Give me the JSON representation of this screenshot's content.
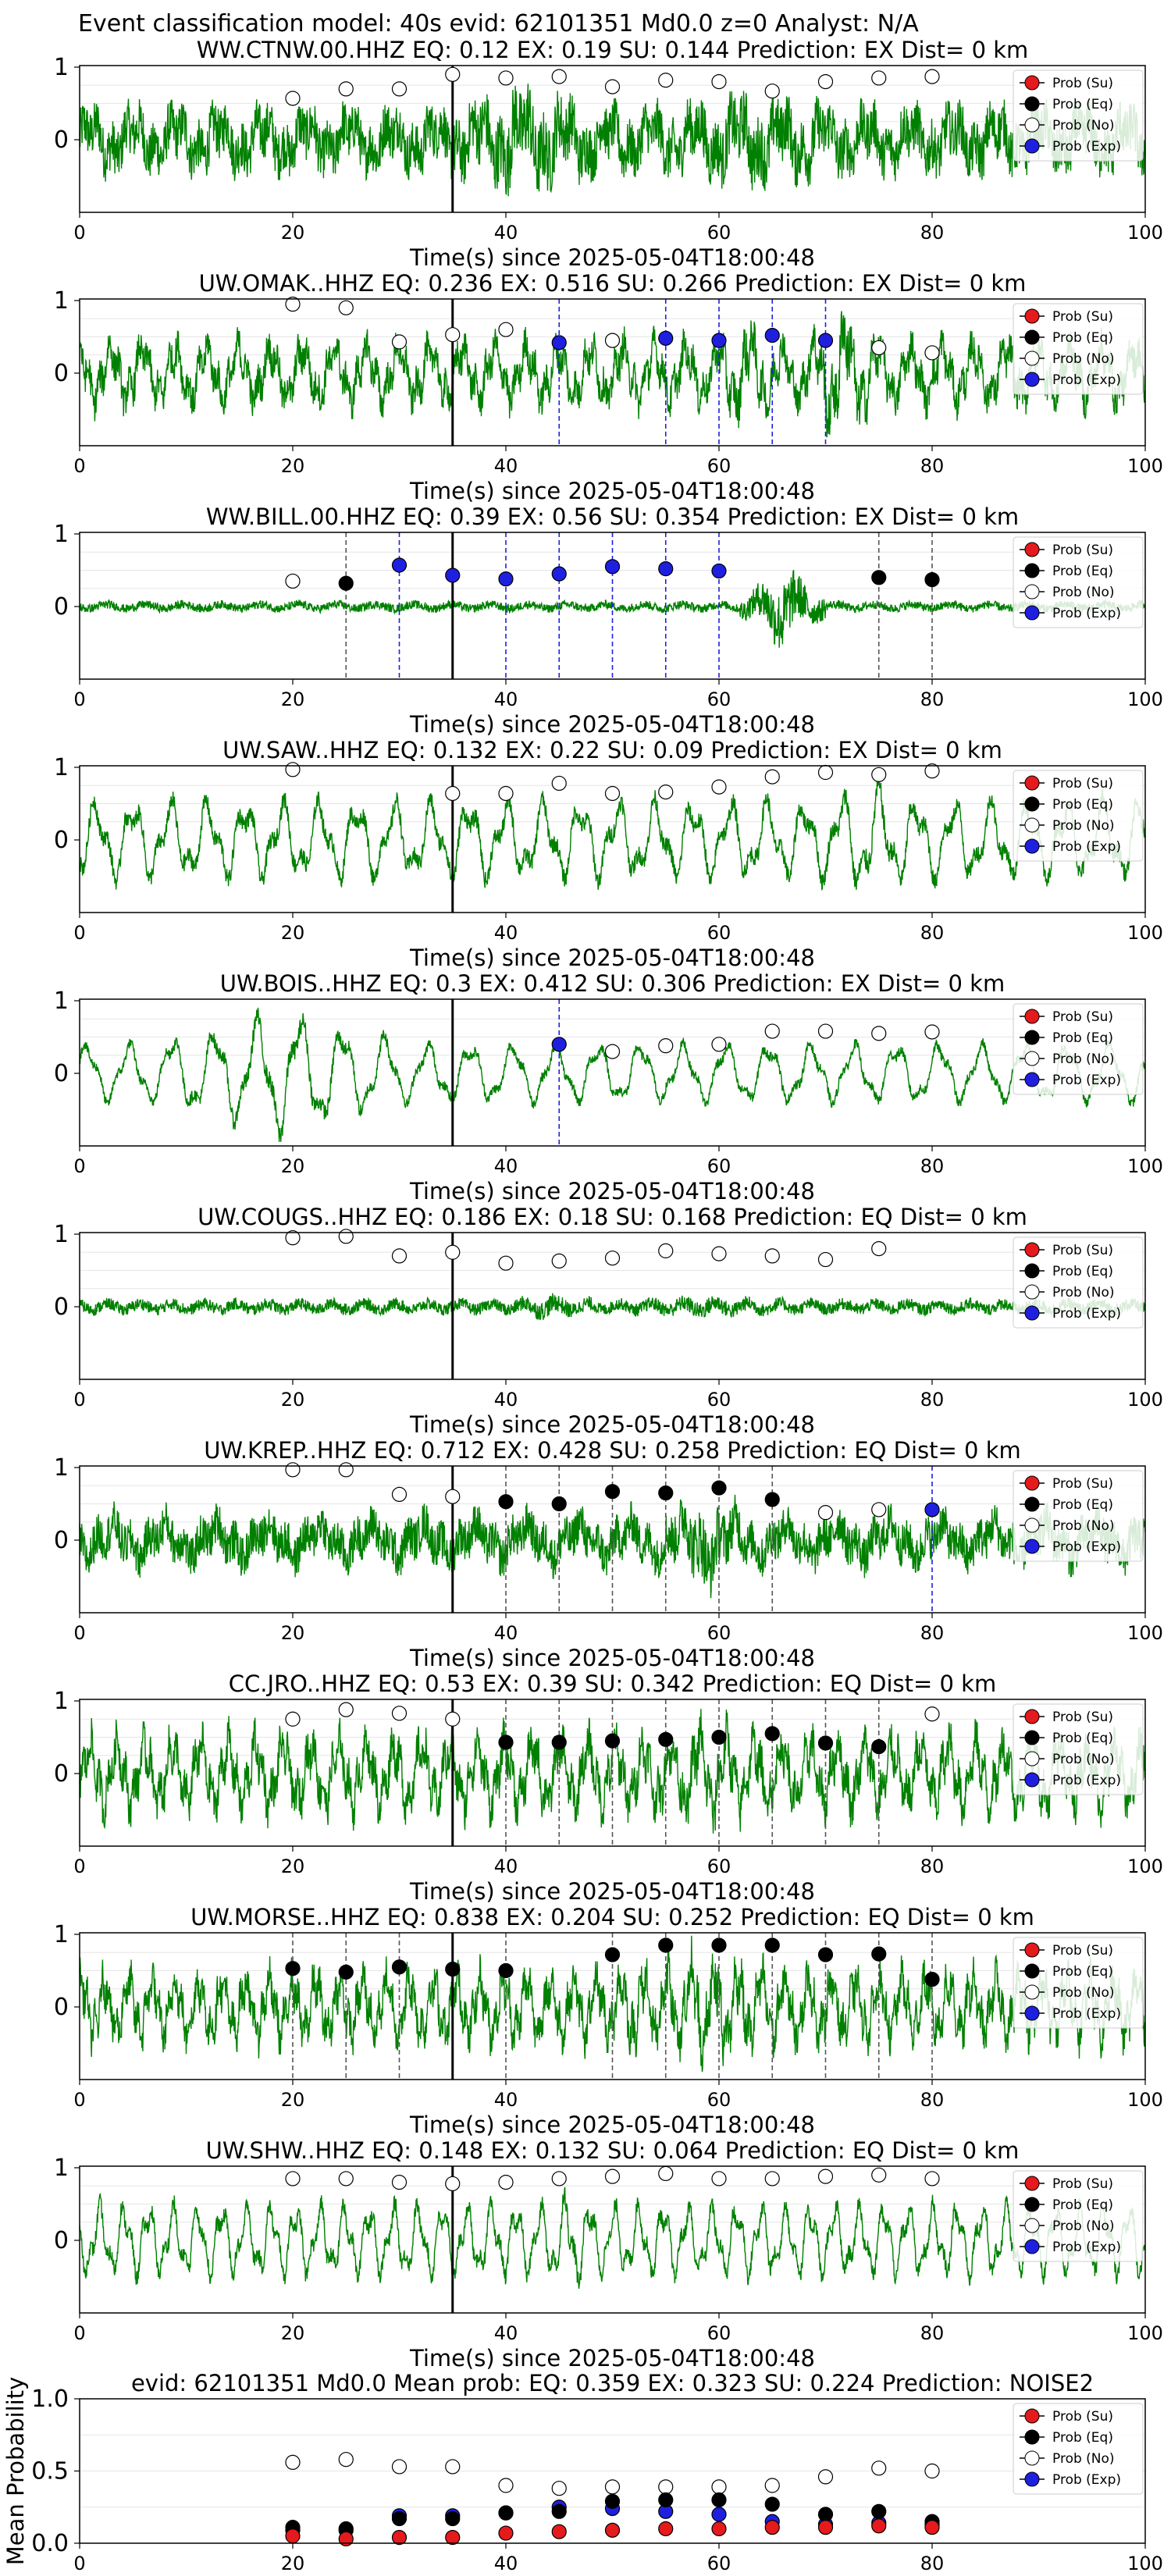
{
  "figure": {
    "suptitle": "Event classification model: 40s evid: 62101351 Md0.0 z=0 Analyst: N/A"
  },
  "legend": {
    "items": [
      {
        "label": "Prob (Su)",
        "fill": "#e41a1c"
      },
      {
        "label": "Prob (Eq)",
        "fill": "#000000"
      },
      {
        "label": "Prob (No)",
        "fill": "#ffffff"
      },
      {
        "label": "Prob (Exp)",
        "fill": "#1f1fe0"
      }
    ]
  },
  "colors": {
    "waveform": "#008000",
    "su": "#e41a1c",
    "eq": "#000000",
    "no": "#ffffff",
    "exp": "#1f1fe0",
    "eq_line": "#555555",
    "exp_line": "#1f1fe0",
    "pick_line": "#000000"
  },
  "chart_data": [
    {
      "type": "line",
      "station": "WW.CTNW.00.HHZ",
      "title": "WW.CTNW.00.HHZ   EQ: 0.12  EX: 0.19  SU: 0.144   Prediction: EX    Dist= 0 km",
      "xlabel": "Time(s) since 2025-05-04T18:00:48",
      "xlim": [
        0,
        100
      ],
      "ylim": [
        -1,
        1
      ],
      "xticks": [
        "0",
        "20",
        "40",
        "60",
        "80",
        "100"
      ],
      "yticks": [
        "1",
        "0"
      ],
      "pick_time": 35,
      "waveform": {
        "style": "noisy",
        "amp": 0.55,
        "period": 1.5,
        "bursts": [
          [
            35,
            48,
            1.6
          ],
          [
            55,
            72,
            1.3
          ]
        ]
      },
      "noise_points": [
        [
          20,
          0.57
        ],
        [
          25,
          0.7
        ],
        [
          30,
          0.7
        ],
        [
          35,
          0.9
        ],
        [
          40,
          0.85
        ],
        [
          45,
          0.87
        ],
        [
          50,
          0.73
        ],
        [
          55,
          0.82
        ],
        [
          60,
          0.8
        ],
        [
          65,
          0.67
        ],
        [
          70,
          0.8
        ],
        [
          75,
          0.85
        ],
        [
          80,
          0.87
        ]
      ],
      "eq_points": [],
      "exp_points": [],
      "eq_lines": [],
      "exp_lines": []
    },
    {
      "type": "line",
      "station": "UW.OMAK..HHZ",
      "title": "UW.OMAK..HHZ   EQ: 0.236  EX: 0.516  SU: 0.266   Prediction: EX    Dist= 0 km",
      "xlabel": "Time(s) since 2025-05-04T18:00:48",
      "xlim": [
        0,
        100
      ],
      "ylim": [
        -1,
        1
      ],
      "xticks": [
        "0",
        "20",
        "40",
        "60",
        "80",
        "100"
      ],
      "yticks": [
        "1",
        "0"
      ],
      "pick_time": 35,
      "waveform": {
        "style": "mixed",
        "amp": 0.55,
        "period": 3.0,
        "bursts": [
          [
            60,
            65,
            1.5
          ],
          [
            68,
            75,
            1.9
          ]
        ]
      },
      "noise_points": [
        [
          20,
          0.95
        ],
        [
          25,
          0.9
        ],
        [
          30,
          0.43
        ],
        [
          35,
          0.53
        ],
        [
          40,
          0.6
        ],
        [
          50,
          0.45
        ],
        [
          75,
          0.35
        ],
        [
          80,
          0.28
        ]
      ],
      "eq_points": [],
      "exp_points": [
        [
          45,
          0.42
        ],
        [
          55,
          0.48
        ],
        [
          60,
          0.45
        ],
        [
          65,
          0.52
        ],
        [
          70,
          0.45
        ]
      ],
      "eq_lines": [],
      "exp_lines": [
        45,
        55,
        60,
        65,
        70
      ]
    },
    {
      "type": "line",
      "station": "WW.BILL.00.HHZ",
      "title": "WW.BILL.00.HHZ   EQ: 0.39  EX: 0.56  SU: 0.354   Prediction: EX    Dist= 0 km",
      "xlabel": "Time(s) since 2025-05-04T18:00:48",
      "xlim": [
        0,
        100
      ],
      "ylim": [
        -1,
        1
      ],
      "xticks": [
        "0",
        "20",
        "40",
        "60",
        "80",
        "100"
      ],
      "yticks": [
        "1",
        "0"
      ],
      "pick_time": 35,
      "waveform": {
        "style": "quiet",
        "amp": 0.1,
        "period": 1.2,
        "bursts": [
          [
            62,
            70,
            8.0
          ]
        ]
      },
      "noise_points": [
        [
          20,
          0.35
        ]
      ],
      "eq_points": [
        [
          25,
          0.32
        ],
        [
          75,
          0.4
        ],
        [
          80,
          0.37
        ]
      ],
      "exp_points": [
        [
          30,
          0.57
        ],
        [
          35,
          0.43
        ],
        [
          40,
          0.38
        ],
        [
          45,
          0.45
        ],
        [
          50,
          0.55
        ],
        [
          55,
          0.52
        ],
        [
          60,
          0.49
        ]
      ],
      "eq_lines": [
        25,
        75,
        80
      ],
      "exp_lines": [
        30,
        40,
        45,
        50,
        55,
        60
      ]
    },
    {
      "type": "line",
      "station": "UW.SAW..HHZ",
      "title": "UW.SAW..HHZ   EQ: 0.132  EX: 0.22  SU: 0.09   Prediction: EX    Dist= 0 km",
      "xlabel": "Time(s) since 2025-05-04T18:00:48",
      "xlim": [
        0,
        100
      ],
      "ylim": [
        -1,
        1
      ],
      "xticks": [
        "0",
        "20",
        "40",
        "60",
        "80",
        "100"
      ],
      "yticks": [
        "1",
        "0"
      ],
      "pick_time": 35,
      "waveform": {
        "style": "wavy",
        "amp": 0.55,
        "period": 3.5,
        "bursts": [
          [
            70,
            78,
            1.4
          ]
        ]
      },
      "noise_points": [
        [
          20,
          0.97
        ],
        [
          35,
          0.64
        ],
        [
          40,
          0.64
        ],
        [
          45,
          0.78
        ],
        [
          50,
          0.64
        ],
        [
          55,
          0.66
        ],
        [
          60,
          0.73
        ],
        [
          65,
          0.87
        ],
        [
          70,
          0.93
        ],
        [
          75,
          0.9
        ],
        [
          80,
          0.95
        ]
      ],
      "eq_points": [],
      "exp_points": [],
      "eq_lines": [],
      "exp_lines": []
    },
    {
      "type": "line",
      "station": "UW.BOIS..HHZ",
      "title": "UW.BOIS..HHZ   EQ: 0.3  EX: 0.412  SU: 0.306   Prediction: EX    Dist= 0 km",
      "xlabel": "Time(s) since 2025-05-04T18:00:48",
      "xlim": [
        0,
        100
      ],
      "ylim": [
        -1,
        1
      ],
      "xticks": [
        "0",
        "20",
        "40",
        "60",
        "80",
        "100"
      ],
      "yticks": [
        "1",
        "0"
      ],
      "pick_time": 35,
      "waveform": {
        "style": "sine",
        "amp": 0.4,
        "period": 4.0,
        "bursts": [
          [
            8,
            30,
            2.1
          ]
        ]
      },
      "noise_points": [
        [
          50,
          0.3
        ],
        [
          55,
          0.38
        ],
        [
          60,
          0.4
        ],
        [
          65,
          0.58
        ],
        [
          70,
          0.58
        ],
        [
          75,
          0.55
        ],
        [
          80,
          0.57
        ]
      ],
      "eq_points": [],
      "exp_points": [
        [
          45,
          0.4
        ]
      ],
      "eq_lines": [],
      "exp_lines": [
        45
      ]
    },
    {
      "type": "line",
      "station": "UW.COUGS..HHZ",
      "title": "UW.COUGS..HHZ   EQ: 0.186  EX: 0.18  SU: 0.168   Prediction: EQ    Dist= 0 km",
      "xlabel": "Time(s) since 2025-05-04T18:00:48",
      "xlim": [
        0,
        100
      ],
      "ylim": [
        -1,
        1
      ],
      "xticks": [
        "0",
        "20",
        "40",
        "60",
        "80",
        "100"
      ],
      "yticks": [
        "1",
        "0"
      ],
      "pick_time": 35,
      "waveform": {
        "style": "quiet",
        "amp": 0.14,
        "period": 1.0,
        "bursts": [
          [
            40,
            48,
            1.7
          ],
          [
            52,
            66,
            1.5
          ]
        ]
      },
      "noise_points": [
        [
          20,
          0.95
        ],
        [
          25,
          0.97
        ],
        [
          30,
          0.7
        ],
        [
          35,
          0.75
        ],
        [
          40,
          0.6
        ],
        [
          45,
          0.63
        ],
        [
          50,
          0.67
        ],
        [
          55,
          0.77
        ],
        [
          60,
          0.73
        ],
        [
          65,
          0.7
        ],
        [
          70,
          0.65
        ],
        [
          75,
          0.8
        ]
      ],
      "eq_points": [],
      "exp_points": [],
      "eq_lines": [],
      "exp_lines": []
    },
    {
      "type": "line",
      "station": "UW.KREP..HHZ",
      "title": "UW.KREP..HHZ   EQ: 0.712  EX: 0.428  SU: 0.258   Prediction: EQ    Dist= 0 km",
      "xlabel": "Time(s) since 2025-05-04T18:00:48",
      "xlim": [
        0,
        100
      ],
      "ylim": [
        -1,
        1
      ],
      "xticks": [
        "0",
        "20",
        "40",
        "60",
        "80",
        "100"
      ],
      "yticks": [
        "1",
        "0"
      ],
      "pick_time": 35,
      "waveform": {
        "style": "noisy",
        "amp": 0.45,
        "period": 1.8,
        "bursts": [
          [
            55,
            62,
            1.7
          ]
        ]
      },
      "noise_points": [
        [
          20,
          0.97
        ],
        [
          25,
          0.97
        ],
        [
          30,
          0.63
        ],
        [
          35,
          0.6
        ],
        [
          70,
          0.38
        ],
        [
          75,
          0.42
        ]
      ],
      "eq_points": [
        [
          40,
          0.53
        ],
        [
          45,
          0.5
        ],
        [
          50,
          0.67
        ],
        [
          55,
          0.65
        ],
        [
          60,
          0.72
        ],
        [
          65,
          0.56
        ]
      ],
      "exp_points": [
        [
          80,
          0.42
        ]
      ],
      "eq_lines": [
        40,
        45,
        50,
        55,
        60,
        65
      ],
      "exp_lines": [
        80
      ]
    },
    {
      "type": "line",
      "station": "CC.JRO..HHZ",
      "title": "CC.JRO..HHZ   EQ: 0.53  EX: 0.39  SU: 0.342   Prediction: EQ    Dist= 0 km",
      "xlabel": "Time(s) since 2025-05-04T18:00:48",
      "xlim": [
        0,
        100
      ],
      "ylim": [
        -1,
        1
      ],
      "xticks": [
        "0",
        "20",
        "40",
        "60",
        "80",
        "100"
      ],
      "yticks": [
        "1",
        "0"
      ],
      "pick_time": 35,
      "waveform": {
        "style": "mixed",
        "amp": 0.65,
        "period": 2.6,
        "bursts": [
          [
            56,
            62,
            1.3
          ]
        ]
      },
      "noise_points": [
        [
          20,
          0.75
        ],
        [
          25,
          0.88
        ],
        [
          30,
          0.83
        ],
        [
          35,
          0.75
        ],
        [
          80,
          0.82
        ]
      ],
      "eq_points": [
        [
          40,
          0.43
        ],
        [
          45,
          0.43
        ],
        [
          50,
          0.45
        ],
        [
          55,
          0.47
        ],
        [
          60,
          0.5
        ],
        [
          65,
          0.55
        ],
        [
          70,
          0.42
        ],
        [
          75,
          0.37
        ]
      ],
      "exp_points": [],
      "eq_lines": [
        40,
        45,
        50,
        55,
        60,
        65,
        70,
        75
      ],
      "exp_lines": []
    },
    {
      "type": "line",
      "station": "UW.MORSE..HHZ",
      "title": "UW.MORSE..HHZ   EQ: 0.838  EX: 0.204  SU: 0.252   Prediction: EQ    Dist= 0 km",
      "xlabel": "Time(s) since 2025-05-04T18:00:48",
      "xlim": [
        0,
        100
      ],
      "ylim": [
        -1,
        1
      ],
      "xticks": [
        "0",
        "20",
        "40",
        "60",
        "80",
        "100"
      ],
      "yticks": [
        "1",
        "0"
      ],
      "pick_time": 35,
      "waveform": {
        "style": "mixed",
        "amp": 0.6,
        "period": 2.2,
        "bursts": [
          [
            50,
            66,
            1.5
          ]
        ]
      },
      "noise_points": [],
      "eq_points": [
        [
          20,
          0.53
        ],
        [
          25,
          0.48
        ],
        [
          30,
          0.55
        ],
        [
          35,
          0.52
        ],
        [
          40,
          0.5
        ],
        [
          50,
          0.72
        ],
        [
          55,
          0.85
        ],
        [
          60,
          0.85
        ],
        [
          65,
          0.85
        ],
        [
          70,
          0.72
        ],
        [
          75,
          0.73
        ],
        [
          80,
          0.38
        ]
      ],
      "exp_points": [],
      "eq_lines": [
        20,
        25,
        30,
        40,
        50,
        55,
        60,
        65,
        70,
        75,
        80
      ],
      "exp_lines": []
    },
    {
      "type": "line",
      "station": "UW.SHW..HHZ",
      "title": "UW.SHW..HHZ   EQ: 0.148  EX: 0.132  SU: 0.064   Prediction: EQ    Dist= 0 km",
      "xlabel": "Time(s) since 2025-05-04T18:00:48",
      "xlim": [
        0,
        100
      ],
      "ylim": [
        -1,
        1
      ],
      "xticks": [
        "0",
        "20",
        "40",
        "60",
        "80",
        "100"
      ],
      "yticks": [
        "1",
        "0"
      ],
      "pick_time": 35,
      "waveform": {
        "style": "wavy",
        "amp": 0.5,
        "period": 2.3,
        "bursts": [
          [
            44,
            48,
            1.4
          ]
        ]
      },
      "noise_points": [
        [
          20,
          0.85
        ],
        [
          25,
          0.85
        ],
        [
          30,
          0.8
        ],
        [
          35,
          0.78
        ],
        [
          40,
          0.8
        ],
        [
          45,
          0.85
        ],
        [
          50,
          0.88
        ],
        [
          55,
          0.92
        ],
        [
          60,
          0.85
        ],
        [
          65,
          0.85
        ],
        [
          70,
          0.88
        ],
        [
          75,
          0.9
        ],
        [
          80,
          0.85
        ]
      ],
      "eq_points": [],
      "exp_points": [],
      "eq_lines": [],
      "exp_lines": []
    },
    {
      "type": "scatter",
      "title": "evid: 62101351  Md0.0   Mean prob:   EQ: 0.359  EX: 0.323  SU: 0.224   Prediction: NOISE2",
      "xlabel": "",
      "ylabel": "Mean Probability",
      "xlim": [
        0,
        100
      ],
      "ylim": [
        0,
        1
      ],
      "xticks": [
        "0",
        "20",
        "40",
        "60",
        "80",
        "100"
      ],
      "yticks": [
        "1.0",
        "0.5",
        "0.0"
      ],
      "x": [
        20,
        25,
        30,
        35,
        40,
        45,
        50,
        55,
        60,
        65,
        70,
        75,
        80
      ],
      "series": [
        {
          "name": "Prob (Su)",
          "values": [
            0.05,
            0.03,
            0.04,
            0.04,
            0.07,
            0.08,
            0.09,
            0.1,
            0.1,
            0.11,
            0.11,
            0.12,
            0.11
          ]
        },
        {
          "name": "Prob (Eq)",
          "values": [
            0.11,
            0.1,
            0.17,
            0.17,
            0.21,
            0.22,
            0.29,
            0.3,
            0.3,
            0.27,
            0.2,
            0.22,
            0.15
          ]
        },
        {
          "name": "Prob (No)",
          "values": [
            0.56,
            0.58,
            0.53,
            0.53,
            0.4,
            0.38,
            0.39,
            0.39,
            0.39,
            0.4,
            0.46,
            0.52,
            0.5
          ]
        },
        {
          "name": "Prob (Exp)",
          "values": [
            0.09,
            0.09,
            0.19,
            0.19,
            0.21,
            0.25,
            0.24,
            0.22,
            0.2,
            0.15,
            0.13,
            0.14,
            0.13
          ]
        }
      ]
    }
  ]
}
